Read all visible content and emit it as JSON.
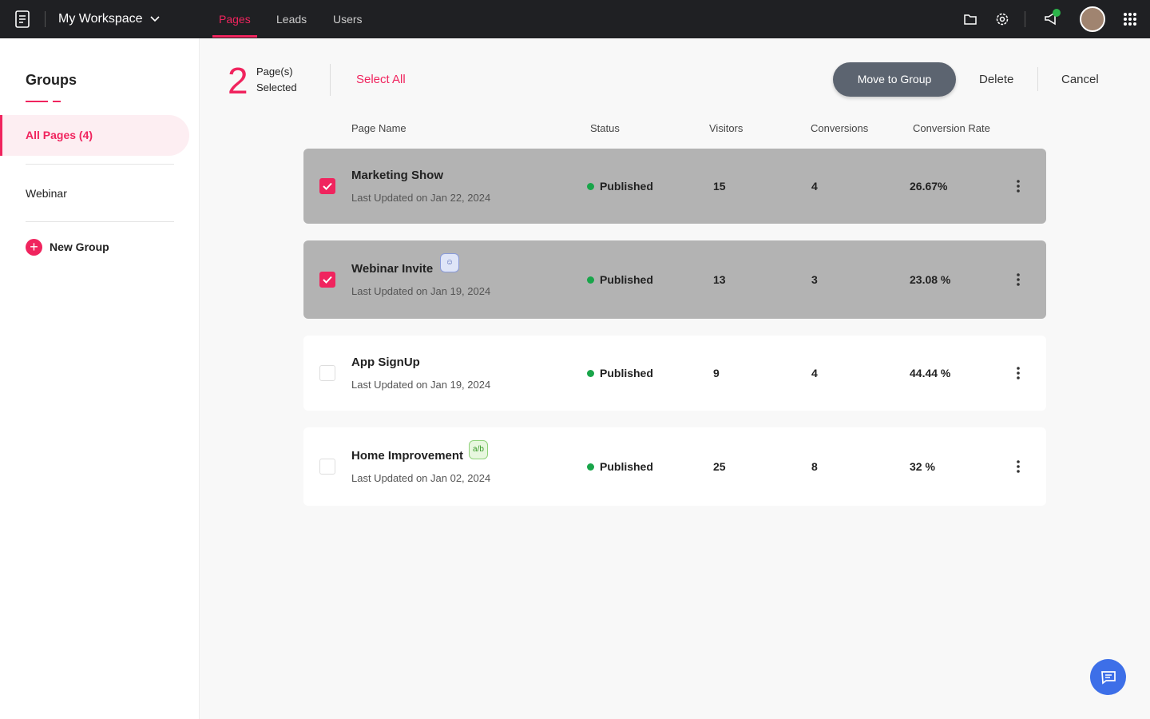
{
  "header": {
    "workspace": "My Workspace",
    "tabs": [
      "Pages",
      "Leads",
      "Users"
    ]
  },
  "sidebar": {
    "title": "Groups",
    "groups": [
      "All Pages (4)",
      "Webinar"
    ],
    "new_group": "New Group"
  },
  "toolbar": {
    "count": "2",
    "count_label": [
      "Page(s)",
      "Selected"
    ],
    "select_all": "Select All",
    "move": "Move to Group",
    "delete": "Delete",
    "cancel": "Cancel"
  },
  "table": {
    "columns": [
      "Page Name",
      "Status",
      "Visitors",
      "Conversions",
      "Conversion Rate"
    ],
    "rows": [
      {
        "name": "Marketing Show",
        "updated": "Last Updated on Jan 22, 2024",
        "status": "Published",
        "visitors": "15",
        "conversions": "4",
        "rate": "26.67%"
      },
      {
        "name": "Webinar Invite",
        "updated": "Last Updated on Jan 19, 2024",
        "status": "Published",
        "visitors": "13",
        "conversions": "3",
        "rate": "23.08 %"
      },
      {
        "name": "App SignUp",
        "updated": "Last Updated on Jan 19, 2024",
        "status": "Published",
        "visitors": "9",
        "conversions": "4",
        "rate": "44.44 %"
      },
      {
        "name": "Home Improvement",
        "updated": "Last Updated on Jan 02, 2024",
        "status": "Published",
        "visitors": "25",
        "conversions": "8",
        "rate": "32 %"
      }
    ]
  }
}
